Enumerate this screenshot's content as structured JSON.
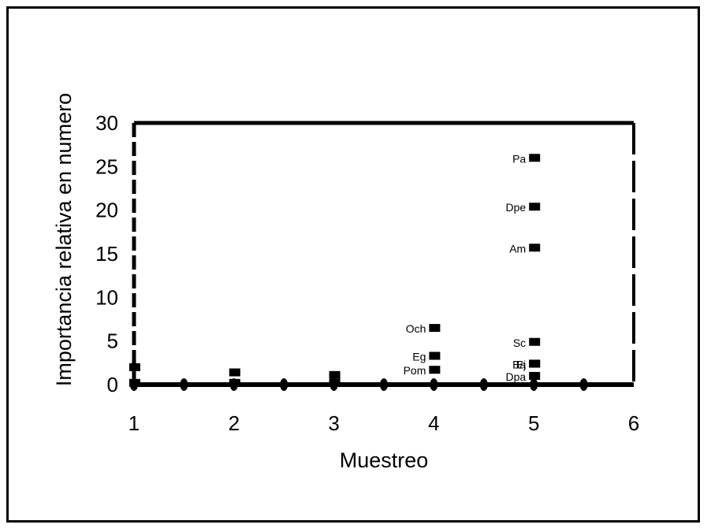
{
  "chart_data": {
    "type": "scatter",
    "xlabel": "Muestreo",
    "ylabel": "Importancia relativa en numero",
    "xlim": [
      1,
      6
    ],
    "ylim": [
      0,
      30
    ],
    "x_ticks": [
      "1",
      "2",
      "3",
      "4",
      "5",
      "6"
    ],
    "y_ticks": [
      "0",
      "5",
      "10",
      "15",
      "20",
      "25",
      "30"
    ],
    "series": [
      {
        "marker": "square",
        "points": [
          {
            "x": 1,
            "y": 2.0,
            "label": ""
          },
          {
            "x": 1,
            "y": 0.2,
            "label": ""
          },
          {
            "x": 2,
            "y": 1.4,
            "label": ""
          },
          {
            "x": 2,
            "y": 0.2,
            "label": ""
          },
          {
            "x": 3,
            "y": 1.1,
            "label": ""
          },
          {
            "x": 3,
            "y": 0.2,
            "label": ""
          },
          {
            "x": 4,
            "y": 6.5,
            "label": "Och"
          },
          {
            "x": 4,
            "y": 3.3,
            "label": "Eg"
          },
          {
            "x": 4,
            "y": 1.7,
            "label": "Pom"
          },
          {
            "x": 5,
            "y": 26.0,
            "label": "Pa"
          },
          {
            "x": 5,
            "y": 20.4,
            "label": "Dpe"
          },
          {
            "x": 5,
            "y": 15.7,
            "label": "Am"
          },
          {
            "x": 5,
            "y": 4.9,
            "label": "Sc"
          },
          {
            "x": 5,
            "y": 2.4,
            "label": "Ba"
          },
          {
            "x": 5,
            "y": 2.4,
            "label": "Ej"
          },
          {
            "x": 5,
            "y": 1.0,
            "label": "Dpa"
          }
        ]
      },
      {
        "marker": "diamond",
        "points": [
          {
            "x": 1,
            "y": 0
          },
          {
            "x": 1.5,
            "y": 0
          },
          {
            "x": 2,
            "y": 0
          },
          {
            "x": 2.5,
            "y": 0
          },
          {
            "x": 3,
            "y": 0
          },
          {
            "x": 3.5,
            "y": 0
          },
          {
            "x": 4,
            "y": 0
          },
          {
            "x": 4.5,
            "y": 0
          },
          {
            "x": 5,
            "y": 0
          },
          {
            "x": 5.5,
            "y": 0
          }
        ]
      }
    ],
    "grid": false,
    "colors": {
      "marks": "#000000",
      "background": "#ffffff"
    }
  }
}
